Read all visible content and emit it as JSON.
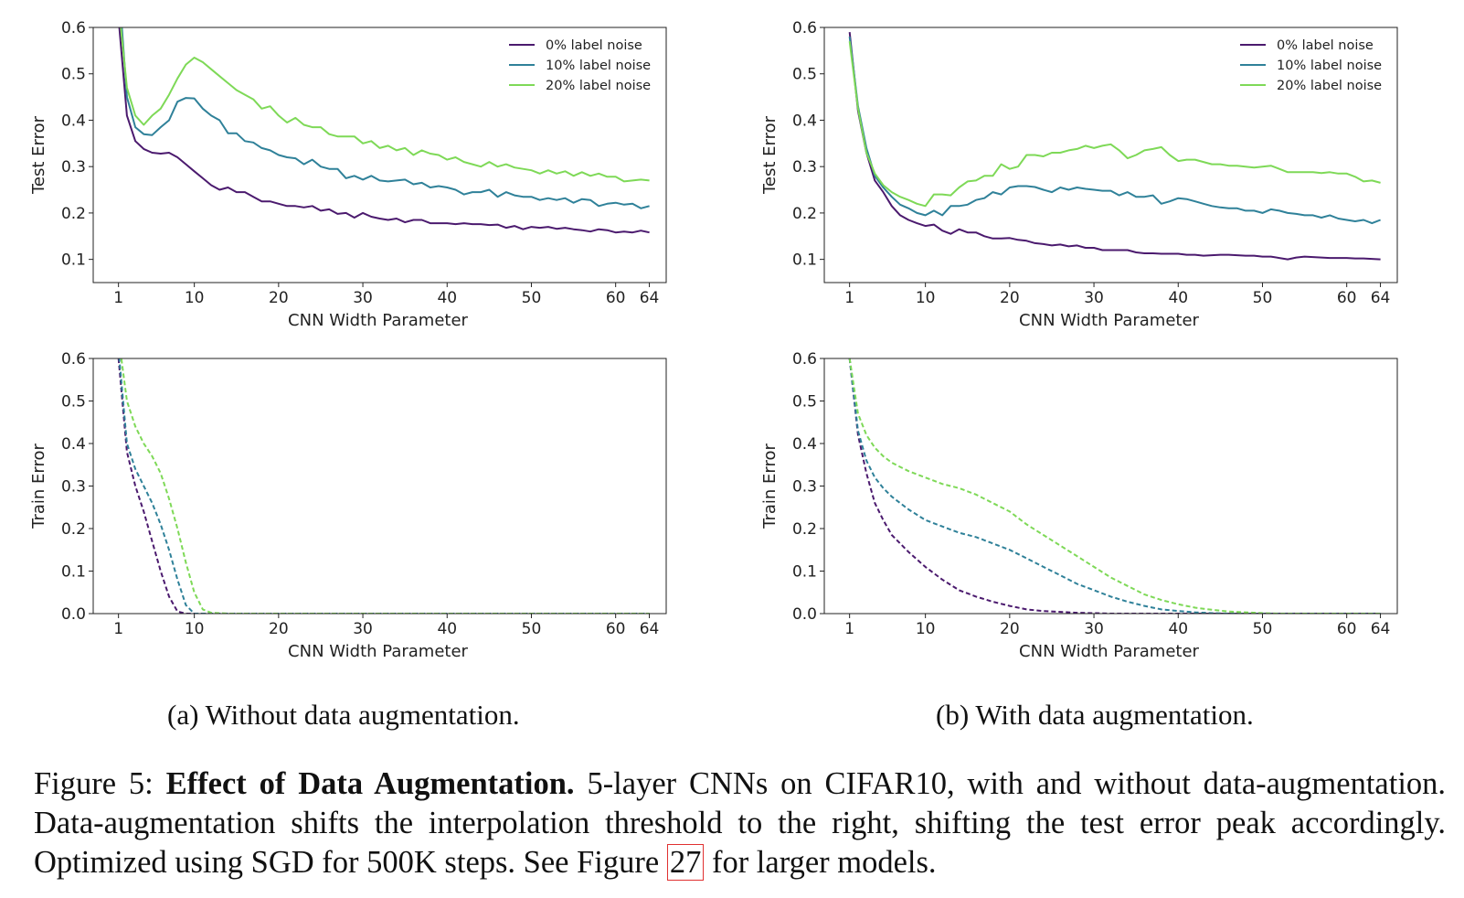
{
  "figure": {
    "subcaption_a": "(a) Without data augmentation.",
    "subcaption_b": "(b) With data augmentation.",
    "caption": {
      "label": "Figure 5:",
      "bold": "Effect of Data Augmentation.",
      "text_before_ref": "5-layer CNNs on CIFAR10, with and without data-augmentation. Data-augmentation shifts the interpolation threshold to the right, shifting the test error peak accordingly. Optimized using SGD for 500K steps. See Figure",
      "ref": "27",
      "text_after_ref": "for larger models."
    }
  },
  "colors": {
    "noise0": "#4b1a6e",
    "noise10": "#2f8199",
    "noise20": "#7ed957"
  },
  "chart_data": [
    {
      "id": "test-no-aug",
      "type": "line",
      "xlabel": "CNN Width Parameter",
      "ylabel": "Test Error",
      "xlim": [
        -2,
        66
      ],
      "ylim": [
        0.05,
        0.6
      ],
      "xticks": [
        1,
        10,
        20,
        30,
        40,
        50,
        60,
        64
      ],
      "yticks": [
        0.1,
        0.2,
        0.3,
        0.4,
        0.5,
        0.6
      ],
      "legend_position": "top-right",
      "line_style": "solid",
      "x": [
        1,
        2,
        3,
        4,
        5,
        6,
        7,
        8,
        9,
        10,
        11,
        12,
        13,
        14,
        15,
        16,
        17,
        18,
        19,
        20,
        21,
        22,
        23,
        24,
        25,
        26,
        27,
        28,
        29,
        30,
        31,
        32,
        33,
        34,
        35,
        36,
        37,
        38,
        39,
        40,
        41,
        42,
        43,
        44,
        45,
        46,
        47,
        48,
        49,
        50,
        51,
        52,
        53,
        54,
        55,
        56,
        57,
        58,
        59,
        60,
        61,
        62,
        63,
        64
      ],
      "series": [
        {
          "name": "0% label noise",
          "color_key": "noise0",
          "values": [
            0.62,
            0.41,
            0.355,
            0.338,
            0.33,
            0.328,
            0.33,
            0.32,
            0.305,
            0.29,
            0.275,
            0.26,
            0.25,
            0.255,
            0.245,
            0.245,
            0.235,
            0.225,
            0.225,
            0.22,
            0.215,
            0.215,
            0.212,
            0.215,
            0.205,
            0.208,
            0.198,
            0.2,
            0.19,
            0.2,
            0.192,
            0.188,
            0.185,
            0.188,
            0.18,
            0.185,
            0.185,
            0.178,
            0.178,
            0.178,
            0.176,
            0.178,
            0.176,
            0.176,
            0.174,
            0.175,
            0.168,
            0.172,
            0.165,
            0.17,
            0.168,
            0.17,
            0.166,
            0.168,
            0.165,
            0.163,
            0.16,
            0.165,
            0.163,
            0.158,
            0.16,
            0.158,
            0.162,
            0.158
          ]
        },
        {
          "name": "10% label noise",
          "color_key": "noise10",
          "values": [
            0.7,
            0.45,
            0.385,
            0.37,
            0.368,
            0.385,
            0.4,
            0.44,
            0.448,
            0.447,
            0.425,
            0.41,
            0.4,
            0.372,
            0.372,
            0.355,
            0.352,
            0.34,
            0.335,
            0.325,
            0.32,
            0.318,
            0.305,
            0.315,
            0.3,
            0.295,
            0.295,
            0.275,
            0.28,
            0.272,
            0.28,
            0.27,
            0.268,
            0.27,
            0.272,
            0.262,
            0.265,
            0.255,
            0.258,
            0.255,
            0.25,
            0.24,
            0.245,
            0.245,
            0.25,
            0.235,
            0.245,
            0.238,
            0.235,
            0.235,
            0.228,
            0.232,
            0.228,
            0.232,
            0.222,
            0.23,
            0.228,
            0.215,
            0.22,
            0.222,
            0.218,
            0.22,
            0.21,
            0.215
          ]
        },
        {
          "name": "20% label noise",
          "color_key": "noise20",
          "values": [
            0.65,
            0.47,
            0.41,
            0.39,
            0.41,
            0.425,
            0.455,
            0.49,
            0.52,
            0.535,
            0.525,
            0.51,
            0.495,
            0.48,
            0.465,
            0.455,
            0.445,
            0.425,
            0.43,
            0.41,
            0.395,
            0.405,
            0.39,
            0.385,
            0.385,
            0.37,
            0.365,
            0.365,
            0.365,
            0.35,
            0.355,
            0.34,
            0.345,
            0.335,
            0.34,
            0.325,
            0.335,
            0.328,
            0.325,
            0.315,
            0.32,
            0.31,
            0.305,
            0.3,
            0.31,
            0.3,
            0.305,
            0.298,
            0.295,
            0.292,
            0.285,
            0.292,
            0.285,
            0.29,
            0.28,
            0.288,
            0.28,
            0.285,
            0.278,
            0.278,
            0.268,
            0.27,
            0.272,
            0.27
          ]
        }
      ]
    },
    {
      "id": "test-aug",
      "type": "line",
      "xlabel": "CNN Width Parameter",
      "ylabel": "Test Error",
      "xlim": [
        -2,
        66
      ],
      "ylim": [
        0.05,
        0.6
      ],
      "xticks": [
        1,
        10,
        20,
        30,
        40,
        50,
        60,
        64
      ],
      "yticks": [
        0.1,
        0.2,
        0.3,
        0.4,
        0.5,
        0.6
      ],
      "legend_position": "top-right",
      "line_style": "solid",
      "x": [
        1,
        2,
        3,
        4,
        5,
        6,
        7,
        8,
        9,
        10,
        11,
        12,
        13,
        14,
        15,
        16,
        17,
        18,
        19,
        20,
        21,
        22,
        23,
        24,
        25,
        26,
        27,
        28,
        29,
        30,
        31,
        32,
        33,
        34,
        35,
        36,
        37,
        38,
        39,
        40,
        41,
        42,
        43,
        44,
        45,
        46,
        47,
        48,
        49,
        50,
        51,
        52,
        53,
        54,
        55,
        56,
        57,
        58,
        59,
        60,
        61,
        62,
        63,
        64
      ],
      "series": [
        {
          "name": "0% label noise",
          "color_key": "noise0",
          "values": [
            0.59,
            0.42,
            0.33,
            0.27,
            0.245,
            0.215,
            0.195,
            0.185,
            0.178,
            0.172,
            0.175,
            0.162,
            0.155,
            0.165,
            0.158,
            0.158,
            0.15,
            0.145,
            0.145,
            0.146,
            0.142,
            0.14,
            0.135,
            0.133,
            0.13,
            0.132,
            0.128,
            0.13,
            0.125,
            0.125,
            0.12,
            0.12,
            0.12,
            0.12,
            0.115,
            0.113,
            0.113,
            0.112,
            0.112,
            0.112,
            0.11,
            0.11,
            0.108,
            0.109,
            0.11,
            0.11,
            0.109,
            0.108,
            0.108,
            0.106,
            0.106,
            0.103,
            0.1,
            0.104,
            0.106,
            0.105,
            0.104,
            0.103,
            0.103,
            0.103,
            0.102,
            0.102,
            0.101,
            0.1
          ]
        },
        {
          "name": "10% label noise",
          "color_key": "noise10",
          "values": [
            0.58,
            0.43,
            0.34,
            0.28,
            0.255,
            0.235,
            0.218,
            0.21,
            0.2,
            0.195,
            0.205,
            0.195,
            0.215,
            0.215,
            0.218,
            0.228,
            0.232,
            0.245,
            0.24,
            0.255,
            0.258,
            0.258,
            0.256,
            0.25,
            0.245,
            0.255,
            0.25,
            0.255,
            0.252,
            0.25,
            0.248,
            0.248,
            0.238,
            0.245,
            0.235,
            0.235,
            0.238,
            0.22,
            0.225,
            0.232,
            0.23,
            0.225,
            0.22,
            0.215,
            0.212,
            0.21,
            0.21,
            0.205,
            0.205,
            0.2,
            0.208,
            0.205,
            0.2,
            0.198,
            0.195,
            0.195,
            0.19,
            0.195,
            0.188,
            0.185,
            0.182,
            0.185,
            0.178,
            0.185
          ]
        },
        {
          "name": "20% label noise",
          "color_key": "noise20",
          "values": [
            0.57,
            0.425,
            0.33,
            0.285,
            0.26,
            0.245,
            0.235,
            0.228,
            0.22,
            0.215,
            0.24,
            0.24,
            0.238,
            0.255,
            0.268,
            0.27,
            0.28,
            0.28,
            0.305,
            0.295,
            0.3,
            0.325,
            0.325,
            0.322,
            0.33,
            0.33,
            0.335,
            0.338,
            0.345,
            0.34,
            0.345,
            0.348,
            0.335,
            0.318,
            0.325,
            0.335,
            0.338,
            0.342,
            0.325,
            0.312,
            0.315,
            0.315,
            0.31,
            0.305,
            0.305,
            0.302,
            0.302,
            0.3,
            0.298,
            0.3,
            0.302,
            0.295,
            0.288,
            0.288,
            0.288,
            0.288,
            0.286,
            0.288,
            0.285,
            0.285,
            0.278,
            0.268,
            0.27,
            0.265
          ]
        }
      ]
    },
    {
      "id": "train-no-aug",
      "type": "line",
      "xlabel": "CNN Width Parameter",
      "ylabel": "Train Error",
      "xlim": [
        -2,
        66
      ],
      "ylim": [
        0.0,
        0.6
      ],
      "xticks": [
        1,
        10,
        20,
        30,
        40,
        50,
        60,
        64
      ],
      "yticks": [
        0.0,
        0.1,
        0.2,
        0.3,
        0.4,
        0.5,
        0.6
      ],
      "line_style": "dashed",
      "x": [
        1,
        2,
        3,
        4,
        5,
        6,
        7,
        8,
        9,
        10,
        11,
        12,
        14,
        16,
        18,
        20,
        25,
        30,
        35,
        40,
        45,
        50,
        55,
        60,
        64
      ],
      "series": [
        {
          "name": "0% label noise",
          "color_key": "noise0",
          "values": [
            0.6,
            0.38,
            0.3,
            0.24,
            0.17,
            0.1,
            0.04,
            0.005,
            0.0,
            0.0,
            0.0,
            0.0,
            0.0,
            0.0,
            0.0,
            0.0,
            0.0,
            0.0,
            0.0,
            0.0,
            0.0,
            0.0,
            0.0,
            0.0,
            0.0
          ]
        },
        {
          "name": "10% label noise",
          "color_key": "noise10",
          "values": [
            0.62,
            0.4,
            0.34,
            0.3,
            0.26,
            0.21,
            0.15,
            0.08,
            0.02,
            0.0,
            0.0,
            0.0,
            0.0,
            0.0,
            0.0,
            0.0,
            0.0,
            0.0,
            0.0,
            0.0,
            0.0,
            0.0,
            0.0,
            0.0,
            0.0
          ]
        },
        {
          "name": "20% label noise",
          "color_key": "noise20",
          "values": [
            0.65,
            0.5,
            0.44,
            0.4,
            0.37,
            0.33,
            0.27,
            0.2,
            0.12,
            0.05,
            0.01,
            0.002,
            0.0,
            0.0,
            0.0,
            0.0,
            0.0,
            0.0,
            0.0,
            0.0,
            0.0,
            0.0,
            0.0,
            0.0,
            0.0
          ]
        }
      ]
    },
    {
      "id": "train-aug",
      "type": "line",
      "xlabel": "CNN Width Parameter",
      "ylabel": "Train Error",
      "xlim": [
        -2,
        66
      ],
      "ylim": [
        0.0,
        0.6
      ],
      "xticks": [
        1,
        10,
        20,
        30,
        40,
        50,
        60,
        64
      ],
      "yticks": [
        0.0,
        0.1,
        0.2,
        0.3,
        0.4,
        0.5,
        0.6
      ],
      "line_style": "dashed",
      "x": [
        1,
        2,
        3,
        4,
        5,
        6,
        8,
        10,
        12,
        14,
        16,
        18,
        20,
        22,
        24,
        26,
        28,
        30,
        32,
        34,
        36,
        38,
        40,
        42,
        44,
        46,
        48,
        50,
        52,
        55,
        58,
        61,
        64
      ],
      "series": [
        {
          "name": "0% label noise",
          "color_key": "noise0",
          "values": [
            0.6,
            0.42,
            0.33,
            0.26,
            0.22,
            0.185,
            0.145,
            0.11,
            0.08,
            0.055,
            0.04,
            0.028,
            0.018,
            0.01,
            0.006,
            0.004,
            0.002,
            0.001,
            0.0,
            0.0,
            0.0,
            0.0,
            0.0,
            0.0,
            0.0,
            0.0,
            0.0,
            0.0,
            0.0,
            0.0,
            0.0,
            0.0,
            0.0
          ]
        },
        {
          "name": "10% label noise",
          "color_key": "noise10",
          "values": [
            0.6,
            0.43,
            0.36,
            0.32,
            0.295,
            0.275,
            0.245,
            0.22,
            0.205,
            0.19,
            0.18,
            0.165,
            0.15,
            0.13,
            0.11,
            0.09,
            0.07,
            0.055,
            0.04,
            0.028,
            0.018,
            0.01,
            0.006,
            0.003,
            0.001,
            0.0,
            0.0,
            0.0,
            0.0,
            0.0,
            0.0,
            0.0,
            0.0
          ]
        },
        {
          "name": "20% label noise",
          "color_key": "noise20",
          "values": [
            0.6,
            0.47,
            0.42,
            0.39,
            0.37,
            0.355,
            0.335,
            0.32,
            0.305,
            0.295,
            0.28,
            0.26,
            0.24,
            0.21,
            0.185,
            0.16,
            0.135,
            0.11,
            0.085,
            0.065,
            0.045,
            0.032,
            0.022,
            0.014,
            0.009,
            0.005,
            0.003,
            0.001,
            0.0,
            0.0,
            0.0,
            0.0,
            0.0
          ]
        }
      ]
    }
  ]
}
